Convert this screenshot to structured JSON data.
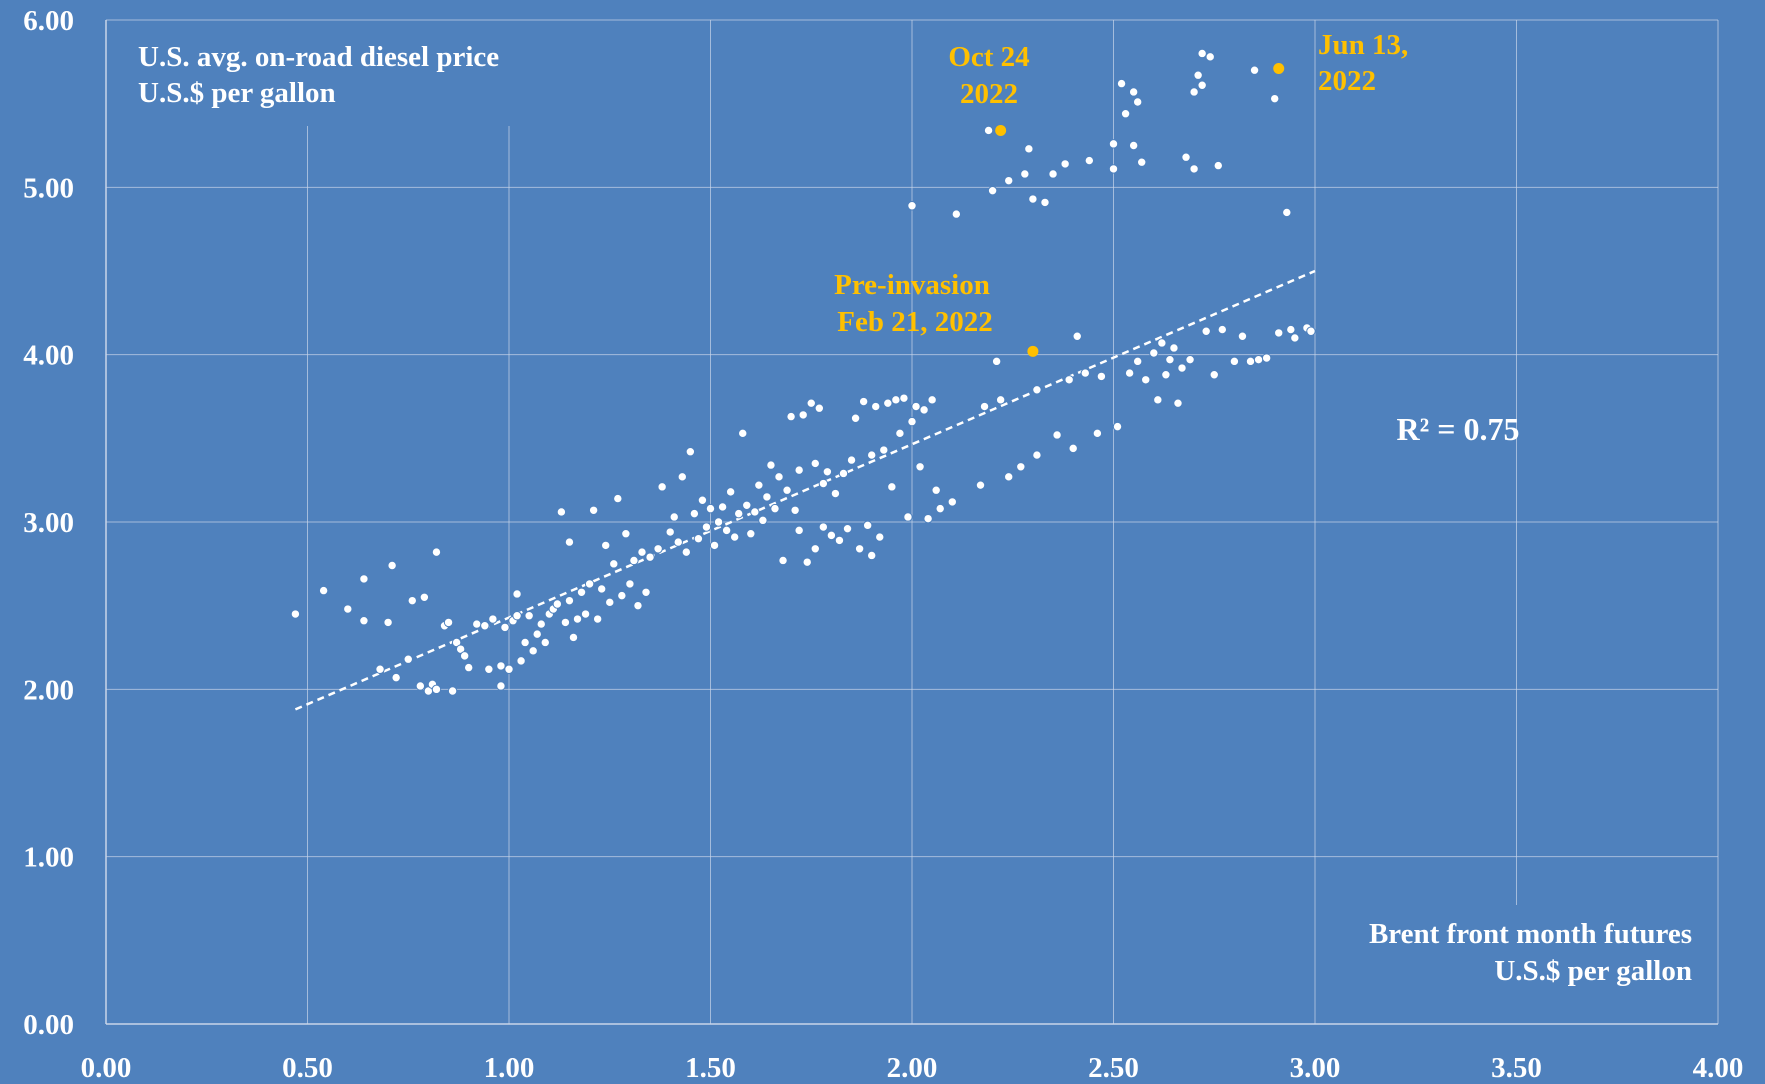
{
  "colors": {
    "background": "#4f81bd",
    "points": "#ffffff",
    "highlight": "#ffc000",
    "grid": "#c9d6ea"
  },
  "chart_data": {
    "type": "scatter",
    "ylabel_lines": [
      "U.S.  avg. on-road diesel price",
      "U.S.$ per gallon"
    ],
    "xlabel_lines": [
      "Brent front month futures",
      "U.S.$ per gallon"
    ],
    "xlim": [
      0,
      4
    ],
    "ylim": [
      0,
      6
    ],
    "xticks": [
      "0.00",
      "0.50",
      "1.00",
      "1.50",
      "2.00",
      "2.50",
      "3.00",
      "3.50",
      "4.00"
    ],
    "yticks": [
      "0.00",
      "1.00",
      "2.00",
      "3.00",
      "4.00",
      "5.00",
      "6.00"
    ],
    "grid": true,
    "trendline": {
      "style": "dashed",
      "from": [
        0.47,
        1.88
      ],
      "to": [
        3.0,
        4.5
      ]
    },
    "r_squared_label": "R² = 0.75",
    "points": [
      [
        0.47,
        2.45
      ],
      [
        0.54,
        2.59
      ],
      [
        0.6,
        2.48
      ],
      [
        0.64,
        2.66
      ],
      [
        0.64,
        2.41
      ],
      [
        0.68,
        2.12
      ],
      [
        0.7,
        2.4
      ],
      [
        0.71,
        2.74
      ],
      [
        0.72,
        2.07
      ],
      [
        0.75,
        2.18
      ],
      [
        0.76,
        2.53
      ],
      [
        0.78,
        2.02
      ],
      [
        0.79,
        2.55
      ],
      [
        0.8,
        1.99
      ],
      [
        0.81,
        2.03
      ],
      [
        0.82,
        2.82
      ],
      [
        0.82,
        2.0
      ],
      [
        0.84,
        2.38
      ],
      [
        0.85,
        2.4
      ],
      [
        0.86,
        1.99
      ],
      [
        0.87,
        2.28
      ],
      [
        0.88,
        2.24
      ],
      [
        0.89,
        2.2
      ],
      [
        0.9,
        2.13
      ],
      [
        0.92,
        2.39
      ],
      [
        0.94,
        2.38
      ],
      [
        0.95,
        2.12
      ],
      [
        0.96,
        2.42
      ],
      [
        0.98,
        2.14
      ],
      [
        0.98,
        2.02
      ],
      [
        0.99,
        2.37
      ],
      [
        1.0,
        2.12
      ],
      [
        1.01,
        2.41
      ],
      [
        1.02,
        2.44
      ],
      [
        1.02,
        2.57
      ],
      [
        1.03,
        2.17
      ],
      [
        1.04,
        2.28
      ],
      [
        1.05,
        2.44
      ],
      [
        1.06,
        2.23
      ],
      [
        1.07,
        2.33
      ],
      [
        1.08,
        2.39
      ],
      [
        1.09,
        2.28
      ],
      [
        1.1,
        2.45
      ],
      [
        1.11,
        2.48
      ],
      [
        1.12,
        2.51
      ],
      [
        1.13,
        3.06
      ],
      [
        1.14,
        2.4
      ],
      [
        1.15,
        2.53
      ],
      [
        1.15,
        2.88
      ],
      [
        1.16,
        2.31
      ],
      [
        1.17,
        2.42
      ],
      [
        1.18,
        2.58
      ],
      [
        1.19,
        2.45
      ],
      [
        1.2,
        2.63
      ],
      [
        1.21,
        3.07
      ],
      [
        1.22,
        2.42
      ],
      [
        1.23,
        2.6
      ],
      [
        1.24,
        2.86
      ],
      [
        1.25,
        2.52
      ],
      [
        1.26,
        2.75
      ],
      [
        1.27,
        3.14
      ],
      [
        1.28,
        2.56
      ],
      [
        1.29,
        2.93
      ],
      [
        1.3,
        2.63
      ],
      [
        1.31,
        2.77
      ],
      [
        1.32,
        2.5
      ],
      [
        1.33,
        2.82
      ],
      [
        1.34,
        2.58
      ],
      [
        1.35,
        2.79
      ],
      [
        1.37,
        2.84
      ],
      [
        1.38,
        3.21
      ],
      [
        1.4,
        2.94
      ],
      [
        1.41,
        3.03
      ],
      [
        1.42,
        2.88
      ],
      [
        1.43,
        3.27
      ],
      [
        1.44,
        2.82
      ],
      [
        1.45,
        3.42
      ],
      [
        1.46,
        3.05
      ],
      [
        1.47,
        2.9
      ],
      [
        1.48,
        3.13
      ],
      [
        1.49,
        2.97
      ],
      [
        1.5,
        3.08
      ],
      [
        1.51,
        2.86
      ],
      [
        1.52,
        3.0
      ],
      [
        1.53,
        3.09
      ],
      [
        1.54,
        2.95
      ],
      [
        1.55,
        3.18
      ],
      [
        1.56,
        2.91
      ],
      [
        1.57,
        3.05
      ],
      [
        1.58,
        3.53
      ],
      [
        1.59,
        3.1
      ],
      [
        1.6,
        2.93
      ],
      [
        1.61,
        3.06
      ],
      [
        1.62,
        3.22
      ],
      [
        1.63,
        3.01
      ],
      [
        1.64,
        3.15
      ],
      [
        1.65,
        3.34
      ],
      [
        1.66,
        3.08
      ],
      [
        1.67,
        3.27
      ],
      [
        1.68,
        2.77
      ],
      [
        1.69,
        3.19
      ],
      [
        1.7,
        3.63
      ],
      [
        1.71,
        3.07
      ],
      [
        1.72,
        3.31
      ],
      [
        1.72,
        2.95
      ],
      [
        1.73,
        3.64
      ],
      [
        1.74,
        2.76
      ],
      [
        1.75,
        3.71
      ],
      [
        1.76,
        3.35
      ],
      [
        1.76,
        2.84
      ],
      [
        1.77,
        3.68
      ],
      [
        1.78,
        3.23
      ],
      [
        1.78,
        2.97
      ],
      [
        1.79,
        3.3
      ],
      [
        1.8,
        2.92
      ],
      [
        1.81,
        3.17
      ],
      [
        1.82,
        2.89
      ],
      [
        1.83,
        3.29
      ],
      [
        1.84,
        2.96
      ],
      [
        1.85,
        3.37
      ],
      [
        1.86,
        3.62
      ],
      [
        1.87,
        2.84
      ],
      [
        1.88,
        3.72
      ],
      [
        1.89,
        2.98
      ],
      [
        1.9,
        3.4
      ],
      [
        1.9,
        2.8
      ],
      [
        1.91,
        3.69
      ],
      [
        1.92,
        2.91
      ],
      [
        1.93,
        3.43
      ],
      [
        1.94,
        3.71
      ],
      [
        1.95,
        3.21
      ],
      [
        1.96,
        3.73
      ],
      [
        1.97,
        3.53
      ],
      [
        1.98,
        3.74
      ],
      [
        1.99,
        3.03
      ],
      [
        2.0,
        3.6
      ],
      [
        2.0,
        4.89
      ],
      [
        2.01,
        3.69
      ],
      [
        2.02,
        3.33
      ],
      [
        2.03,
        3.67
      ],
      [
        2.04,
        3.02
      ],
      [
        2.05,
        3.73
      ],
      [
        2.06,
        3.19
      ],
      [
        2.07,
        3.08
      ],
      [
        2.1,
        3.12
      ],
      [
        2.11,
        4.84
      ],
      [
        2.17,
        3.22
      ],
      [
        2.18,
        3.69
      ],
      [
        2.19,
        5.34
      ],
      [
        2.2,
        4.98
      ],
      [
        2.21,
        3.96
      ],
      [
        2.22,
        3.73
      ],
      [
        2.24,
        3.27
      ],
      [
        2.24,
        5.04
      ],
      [
        2.27,
        3.33
      ],
      [
        2.28,
        5.08
      ],
      [
        2.29,
        5.23
      ],
      [
        2.3,
        4.93
      ],
      [
        2.31,
        3.4
      ],
      [
        2.31,
        3.79
      ],
      [
        2.33,
        4.91
      ],
      [
        2.35,
        5.08
      ],
      [
        2.36,
        3.52
      ],
      [
        2.38,
        5.14
      ],
      [
        2.39,
        3.85
      ],
      [
        2.4,
        3.44
      ],
      [
        2.41,
        4.11
      ],
      [
        2.43,
        3.89
      ],
      [
        2.44,
        5.16
      ],
      [
        2.46,
        3.53
      ],
      [
        2.47,
        3.87
      ],
      [
        2.5,
        5.11
      ],
      [
        2.5,
        5.26
      ],
      [
        2.51,
        3.57
      ],
      [
        2.52,
        5.62
      ],
      [
        2.53,
        5.44
      ],
      [
        2.54,
        3.89
      ],
      [
        2.55,
        5.25
      ],
      [
        2.55,
        5.57
      ],
      [
        2.56,
        5.51
      ],
      [
        2.56,
        3.96
      ],
      [
        2.57,
        5.15
      ],
      [
        2.58,
        3.85
      ],
      [
        2.6,
        4.01
      ],
      [
        2.61,
        3.73
      ],
      [
        2.62,
        4.07
      ],
      [
        2.63,
        3.88
      ],
      [
        2.64,
        3.97
      ],
      [
        2.65,
        4.04
      ],
      [
        2.66,
        3.71
      ],
      [
        2.67,
        3.92
      ],
      [
        2.68,
        5.18
      ],
      [
        2.69,
        3.97
      ],
      [
        2.7,
        5.57
      ],
      [
        2.7,
        5.11
      ],
      [
        2.71,
        5.67
      ],
      [
        2.72,
        5.61
      ],
      [
        2.72,
        5.8
      ],
      [
        2.73,
        4.14
      ],
      [
        2.74,
        5.78
      ],
      [
        2.75,
        3.88
      ],
      [
        2.76,
        5.13
      ],
      [
        2.77,
        4.15
      ],
      [
        2.8,
        3.96
      ],
      [
        2.82,
        4.11
      ],
      [
        2.84,
        3.96
      ],
      [
        2.85,
        5.7
      ],
      [
        2.86,
        3.97
      ],
      [
        2.88,
        3.98
      ],
      [
        2.9,
        5.53
      ],
      [
        2.91,
        4.13
      ],
      [
        2.93,
        4.85
      ],
      [
        2.94,
        4.15
      ],
      [
        2.95,
        4.1
      ],
      [
        2.98,
        4.16
      ],
      [
        2.99,
        4.14
      ]
    ],
    "highlighted_points": [
      {
        "x": 2.22,
        "y": 5.34,
        "label_lines": [
          "Oct 24",
          "2022"
        ]
      },
      {
        "x": 2.91,
        "y": 5.71,
        "label_lines": [
          "Jun 13,",
          "2022"
        ]
      },
      {
        "x": 2.3,
        "y": 4.02,
        "label_lines": [
          "Pre-invasion",
          "Feb 21, 2022"
        ]
      }
    ]
  }
}
